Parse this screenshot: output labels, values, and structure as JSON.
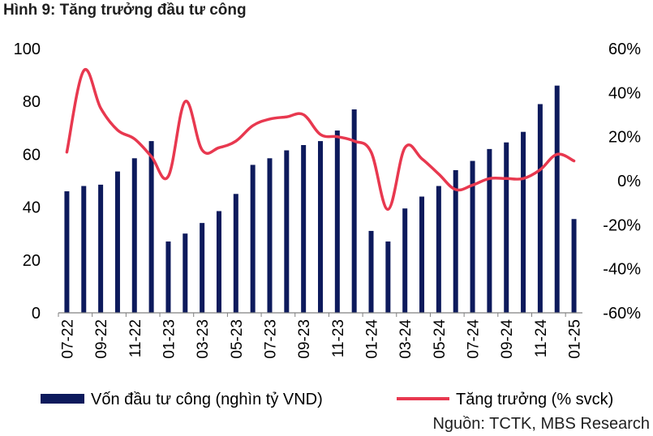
{
  "title": "Hình 9: Tăng trưởng đầu tư công",
  "source": "Nguồn: TCTK, MBS Research",
  "colors": {
    "bar": "#0d1a5c",
    "line": "#e8384f",
    "axis": "#808080"
  },
  "chart_data": {
    "type": "bar",
    "title": "Hình 9: Tăng trưởng đầu tư công",
    "categories": [
      "07-22",
      "08-22",
      "09-22",
      "10-22",
      "11-22",
      "12-22",
      "01-23",
      "02-23",
      "03-23",
      "04-23",
      "05-23",
      "06-23",
      "07-23",
      "08-23",
      "09-23",
      "10-23",
      "11-23",
      "12-23",
      "01-24",
      "02-24",
      "03-24",
      "04-24",
      "05-24",
      "06-24",
      "07-24",
      "08-24",
      "09-24",
      "10-24",
      "11-24",
      "12-24",
      "01-25"
    ],
    "x_tick_labels": [
      "07-22",
      "09-22",
      "11-22",
      "01-23",
      "03-23",
      "05-23",
      "07-23",
      "09-23",
      "11-23",
      "01-24",
      "03-24",
      "05-24",
      "07-24",
      "09-24",
      "11-24",
      "01-25"
    ],
    "series": [
      {
        "name": "Vốn đầu tư công (nghìn tỷ VND)",
        "type": "bar",
        "axis": "left",
        "values": [
          46,
          48,
          48.5,
          53.5,
          58.5,
          65,
          27,
          30,
          34,
          38.5,
          45,
          56,
          58.5,
          61.5,
          63.5,
          65,
          69,
          77,
          31,
          27,
          39.5,
          44,
          48,
          54,
          57.5,
          62,
          64.5,
          68.5,
          79,
          86,
          35.5
        ]
      },
      {
        "name": "Tăng trưởng (% svck)",
        "type": "line",
        "axis": "right",
        "values": [
          13,
          50,
          33,
          23,
          19,
          11,
          2,
          36,
          14,
          15,
          18,
          25,
          28,
          29,
          30,
          21,
          20,
          18,
          13,
          -13,
          15,
          10,
          3,
          -4,
          -2,
          1,
          1,
          1,
          5,
          12,
          9
        ]
      }
    ],
    "y_left": {
      "min": 0,
      "max": 100,
      "ticks": [
        "0",
        "20",
        "40",
        "60",
        "80",
        "100"
      ]
    },
    "y_right": {
      "min": -60,
      "max": 60,
      "ticks": [
        "-60%",
        "-40%",
        "-20%",
        "0%",
        "20%",
        "40%",
        "60%"
      ]
    },
    "legend": [
      "Vốn đầu tư công (nghìn tỷ VND)",
      "Tăng trưởng (% svck)"
    ],
    "legend_position": "bottom",
    "grid": false
  }
}
